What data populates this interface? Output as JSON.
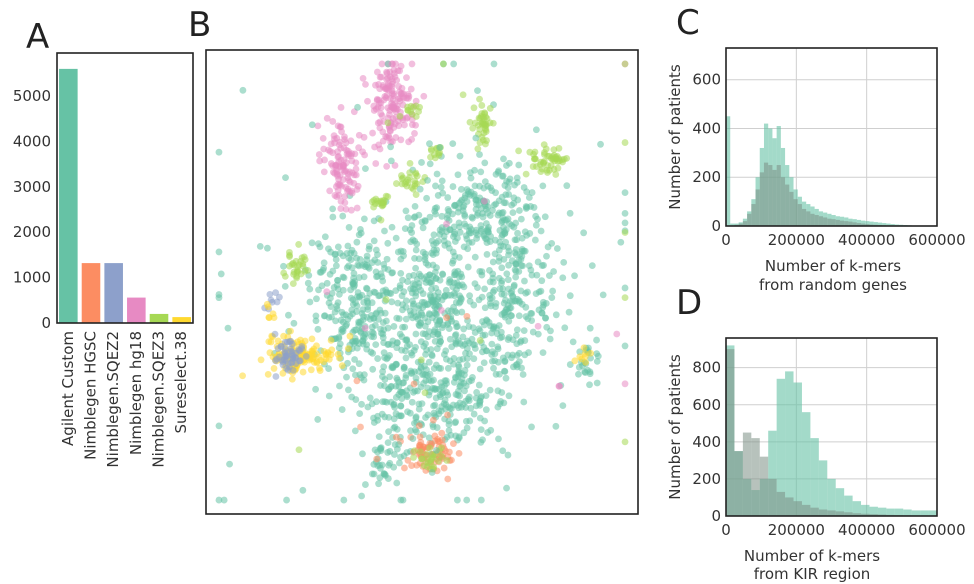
{
  "panels": {
    "a": {
      "letter": "A"
    },
    "b": {
      "letter": "B"
    },
    "c": {
      "letter": "C"
    },
    "d": {
      "letter": "D"
    }
  },
  "chart_data": [
    {
      "id": "a",
      "type": "bar",
      "title": "",
      "xlabel": "",
      "ylabel": "",
      "categories": [
        "Agilent Custom",
        "Nimblegen HGSC",
        "Nimblegen.SQEZ2",
        "Nimblegen hg18",
        "Nimblegen.SQEZ3",
        "Sureselect.38"
      ],
      "values": [
        5600,
        1320,
        1320,
        560,
        200,
        130
      ],
      "colors": [
        "#66c2a5",
        "#fc8d62",
        "#8da0cb",
        "#e78ac3",
        "#a6d854",
        "#ffd92f"
      ],
      "ylim": [
        0,
        5950
      ],
      "yticks": [
        "0",
        "1000",
        "2000",
        "3000",
        "4000",
        "5000"
      ],
      "ytick_values": [
        0,
        1000,
        2000,
        3000,
        4000,
        5000
      ],
      "grid": false
    },
    {
      "id": "b",
      "type": "scatter",
      "title": "",
      "axes_visible": false,
      "clusters": [
        {
          "color": "#66c2a5",
          "x": 0.35,
          "y": 0.55,
          "sx": 0.055,
          "sy": 0.09,
          "n": 260
        },
        {
          "color": "#66c2a5",
          "x": 0.53,
          "y": 0.53,
          "sx": 0.05,
          "sy": 0.08,
          "n": 220
        },
        {
          "color": "#66c2a5",
          "x": 0.7,
          "y": 0.52,
          "sx": 0.06,
          "sy": 0.1,
          "n": 240
        },
        {
          "color": "#66c2a5",
          "x": 0.62,
          "y": 0.34,
          "sx": 0.07,
          "sy": 0.05,
          "n": 180
        },
        {
          "color": "#66c2a5",
          "x": 0.57,
          "y": 0.74,
          "sx": 0.07,
          "sy": 0.06,
          "n": 170
        },
        {
          "color": "#66c2a5",
          "x": 0.45,
          "y": 0.74,
          "sx": 0.03,
          "sy": 0.05,
          "n": 60
        },
        {
          "color": "#66c2a5",
          "x": 0.41,
          "y": 0.88,
          "sx": 0.02,
          "sy": 0.04,
          "n": 40
        },
        {
          "color": "#66c2a5",
          "x": 0.5,
          "y": 0.6,
          "sx": 0.12,
          "sy": 0.15,
          "n": 140
        },
        {
          "color": "#e78ac3",
          "x": 0.43,
          "y": 0.12,
          "sx": 0.025,
          "sy": 0.05,
          "n": 150
        },
        {
          "color": "#e78ac3",
          "x": 0.31,
          "y": 0.24,
          "sx": 0.02,
          "sy": 0.05,
          "n": 110
        },
        {
          "color": "#a6d854",
          "x": 0.48,
          "y": 0.13,
          "sx": 0.012,
          "sy": 0.008,
          "n": 12
        },
        {
          "color": "#a6d854",
          "x": 0.64,
          "y": 0.16,
          "sx": 0.012,
          "sy": 0.025,
          "n": 40
        },
        {
          "color": "#a6d854",
          "x": 0.79,
          "y": 0.24,
          "sx": 0.02,
          "sy": 0.015,
          "n": 50
        },
        {
          "color": "#a6d854",
          "x": 0.48,
          "y": 0.28,
          "sx": 0.015,
          "sy": 0.015,
          "n": 25
        },
        {
          "color": "#a6d854",
          "x": 0.53,
          "y": 0.22,
          "sx": 0.01,
          "sy": 0.01,
          "n": 12
        },
        {
          "color": "#a6d854",
          "x": 0.4,
          "y": 0.33,
          "sx": 0.015,
          "sy": 0.008,
          "n": 18
        },
        {
          "color": "#a6d854",
          "x": 0.21,
          "y": 0.47,
          "sx": 0.015,
          "sy": 0.02,
          "n": 30
        },
        {
          "color": "#ffd92f",
          "x": 0.22,
          "y": 0.66,
          "sx": 0.04,
          "sy": 0.02,
          "n": 140
        },
        {
          "color": "#8da0cb",
          "x": 0.19,
          "y": 0.66,
          "sx": 0.02,
          "sy": 0.02,
          "n": 50
        },
        {
          "color": "#fc8d62",
          "x": 0.52,
          "y": 0.87,
          "sx": 0.025,
          "sy": 0.02,
          "n": 70
        },
        {
          "color": "#a6d854",
          "x": 0.52,
          "y": 0.88,
          "sx": 0.02,
          "sy": 0.015,
          "n": 25
        },
        {
          "color": "#66c2a5",
          "x": 0.88,
          "y": 0.67,
          "sx": 0.015,
          "sy": 0.025,
          "n": 25
        },
        {
          "color": "#ffd92f",
          "x": 0.87,
          "y": 0.66,
          "sx": 0.01,
          "sy": 0.01,
          "n": 8
        },
        {
          "color": "#8da0cb",
          "x": 0.15,
          "y": 0.54,
          "sx": 0.008,
          "sy": 0.012,
          "n": 8
        },
        {
          "color": "#ffd92f",
          "x": 0.15,
          "y": 0.56,
          "sx": 0.008,
          "sy": 0.01,
          "n": 6
        },
        {
          "color": "#66c2a5",
          "x": 0.5,
          "y": 0.5,
          "sx": 0.3,
          "sy": 0.3,
          "n": 90
        },
        {
          "color": "#e78ac3",
          "x": 0.5,
          "y": 0.5,
          "sx": 0.35,
          "sy": 0.3,
          "n": 12
        },
        {
          "color": "#a6d854",
          "x": 0.5,
          "y": 0.5,
          "sx": 0.3,
          "sy": 0.3,
          "n": 14
        },
        {
          "color": "#fc8d62",
          "x": 0.4,
          "y": 0.7,
          "sx": 0.15,
          "sy": 0.15,
          "n": 10
        }
      ]
    },
    {
      "id": "c",
      "type": "histogram",
      "title": "",
      "xlabel_line1": "Number of k-mers",
      "xlabel_line2": "from random genes",
      "ylabel": "Number of patients",
      "xlim": [
        0,
        600000
      ],
      "ylim": [
        0,
        730
      ],
      "xticks": [
        "0",
        "200000",
        "400000",
        "600000"
      ],
      "xtick_values": [
        0,
        200000,
        400000,
        600000
      ],
      "yticks": [
        "0",
        "200",
        "400",
        "600"
      ],
      "ytick_values": [
        0,
        200,
        400,
        600
      ],
      "grid": true,
      "bin_width": 12000,
      "series": [
        {
          "color": "#66c2a5",
          "opacity": 0.6,
          "values": [
            450,
            10,
            10,
            15,
            30,
            60,
            110,
            200,
            320,
            420,
            400,
            360,
            410,
            320,
            250,
            200,
            150,
            120,
            100,
            90,
            80,
            70,
            60,
            55,
            50,
            45,
            40,
            38,
            35,
            30,
            28,
            25,
            22,
            20,
            18,
            16,
            14,
            12,
            10,
            8,
            6,
            5,
            4,
            3,
            2,
            2,
            1,
            1,
            1,
            1
          ]
        },
        {
          "color": "#7b8f85",
          "opacity": 0.55,
          "values": [
            0,
            0,
            5,
            10,
            20,
            50,
            90,
            150,
            220,
            260,
            250,
            230,
            250,
            200,
            170,
            140,
            110,
            90,
            70,
            60,
            50,
            45,
            40,
            35,
            30,
            28,
            25,
            22,
            20,
            18,
            15,
            12,
            10,
            8,
            6,
            5,
            4,
            3,
            2,
            2,
            1,
            1,
            1,
            0,
            0,
            0,
            0,
            0,
            0,
            0
          ]
        }
      ]
    },
    {
      "id": "d",
      "type": "histogram",
      "title": "",
      "xlabel_line1": "Number of k-mers",
      "xlabel_line2": "from KIR region",
      "ylabel": "Number of patients",
      "xlim": [
        0,
        600000
      ],
      "ylim": [
        0,
        960
      ],
      "xticks": [
        "0",
        "200000",
        "400000",
        "600000"
      ],
      "xtick_values": [
        0,
        200000,
        400000,
        600000
      ],
      "yticks": [
        "0",
        "200",
        "400",
        "600",
        "800"
      ],
      "ytick_values": [
        0,
        200,
        400,
        600,
        800
      ],
      "grid": true,
      "bin_width": 24000,
      "series": [
        {
          "color": "#66c2a5",
          "opacity": 0.6,
          "values": [
            920,
            350,
            200,
            140,
            200,
            460,
            740,
            780,
            720,
            560,
            420,
            300,
            200,
            150,
            110,
            80,
            60,
            50,
            45,
            40,
            40,
            35,
            30,
            30,
            30
          ]
        },
        {
          "color": "#7b8f85",
          "opacity": 0.55,
          "values": [
            900,
            350,
            450,
            420,
            320,
            200,
            130,
            100,
            80,
            60,
            45,
            35,
            30,
            25,
            20,
            15,
            12,
            10,
            8,
            6,
            5,
            4,
            3,
            2,
            2
          ]
        }
      ]
    }
  ]
}
